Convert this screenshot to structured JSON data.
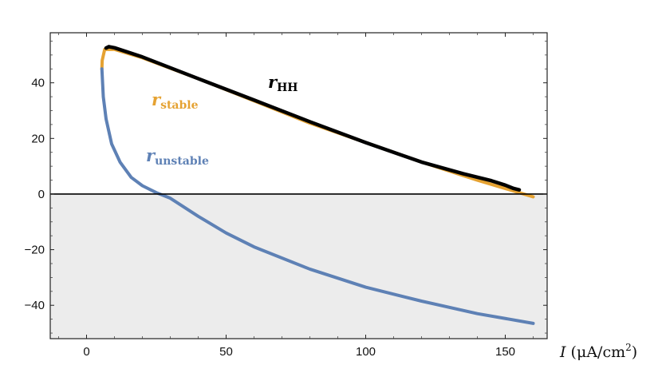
{
  "chart_data": {
    "type": "line",
    "title": "",
    "xlabel": {
      "symbol": "I",
      "unit_open": " (μA/cm",
      "unit_exp": "2",
      "unit_close": ")"
    },
    "ylabel": "",
    "xlim": [
      -13,
      165
    ],
    "ylim": [
      -52,
      58
    ],
    "grid": false,
    "legend": "none",
    "negative_region_shaded": true,
    "x_ticks": [
      0,
      50,
      100,
      150
    ],
    "y_ticks": [
      -40,
      -20,
      0,
      20,
      40
    ],
    "x_tick_labels": [
      "0",
      "50",
      "100",
      "150"
    ],
    "y_tick_labels": [
      "−40",
      "−20",
      "0",
      "20",
      "40"
    ],
    "series": [
      {
        "name": "r_stable",
        "label_main": "r",
        "label_sub": "stable",
        "color": "#e5a232",
        "x": [
          5.5,
          5.6,
          6.5,
          10,
          20,
          40,
          60,
          80,
          100,
          120,
          140,
          155,
          160
        ],
        "y": [
          45,
          48,
          52,
          52,
          49,
          41.5,
          33.5,
          25.5,
          18.5,
          11.5,
          5,
          0.5,
          -1
        ]
      },
      {
        "name": "r_unstable",
        "label_main": "r",
        "label_sub": "unstable",
        "color": "#5e81b5",
        "x": [
          5.5,
          6,
          7,
          9,
          12,
          16,
          20,
          25,
          30,
          40,
          50,
          60,
          80,
          100,
          120,
          140,
          160
        ],
        "y": [
          45,
          35,
          27,
          18,
          11.5,
          6,
          3,
          0.5,
          -1.5,
          -8,
          -14,
          -19,
          -27,
          -33.5,
          -38.5,
          -43,
          -46.5
        ]
      },
      {
        "name": "r_HH",
        "label_main": "r",
        "label_sub": "HH",
        "color": "#000000",
        "x": [
          7,
          8,
          10,
          20,
          40,
          60,
          80,
          100,
          120,
          135,
          145,
          150,
          153,
          155
        ],
        "y": [
          52.5,
          53,
          52.6,
          49.3,
          41.5,
          33.8,
          26,
          18.5,
          11.5,
          7.3,
          4.8,
          3.2,
          2,
          1.5
        ]
      }
    ]
  }
}
